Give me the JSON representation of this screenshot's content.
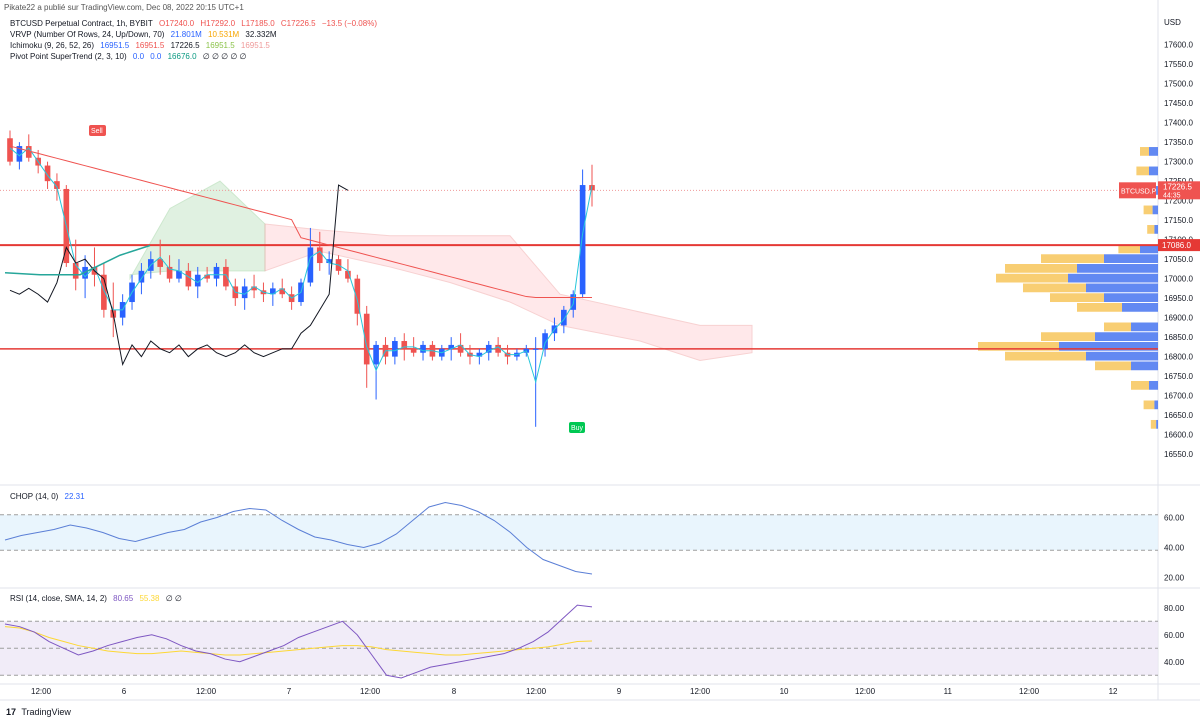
{
  "header": {
    "published": "Pikate22 a publié sur TradingView.com, Dec 08, 2022 20:15 UTC+1"
  },
  "legend": {
    "main": {
      "name": "BTCUSD Perpetual Contract, 1h, BYBIT",
      "o": "O17240.0",
      "h": "H17292.0",
      "l": "L17185.0",
      "c": "C17226.5",
      "chg": "−13.5 (−0.08%)"
    },
    "vrvp": {
      "name": "VRVP (Number Of Rows, 24, Up/Down, 70)",
      "v1": "21.801M",
      "v2": "10.531M",
      "v3": "32.332M"
    },
    "ichimoku": {
      "name": "Ichimoku (9, 26, 52, 26)",
      "v1": "16951.5",
      "v2": "16951.5",
      "v3": "17226.5",
      "v4": "16951.5",
      "v5": "16951.5"
    },
    "pst": {
      "name": "Pivot Point SuperTrend (2, 3, 10)",
      "v1": "0.0",
      "v2": "0.0",
      "v3": "16676.0",
      "v4": "∅ ∅ ∅ ∅ ∅"
    },
    "chop": {
      "name": "CHOP (14, 0)",
      "value": "22.31"
    },
    "rsi": {
      "name": "RSI (14, close, SMA, 14, 2)",
      "value": "80.65",
      "sma": "55.38",
      "rest": "∅ ∅"
    }
  },
  "price_axis": {
    "currency": "USD",
    "ticks": [
      "17600.0",
      "17550.0",
      "17500.0",
      "17450.0",
      "17400.0",
      "17350.0",
      "17300.0",
      "17250.0",
      "17200.0",
      "17150.0",
      "17100.0",
      "17050.0",
      "17000.0",
      "16950.0",
      "16900.0",
      "16850.0",
      "16800.0",
      "16750.0",
      "16700.0",
      "16650.0",
      "16600.0",
      "16550.0"
    ],
    "last_label": "BTCUSD.P",
    "last_price": "17226.5",
    "countdown": "44:35",
    "hline_label": "17086.0"
  },
  "chop_axis": [
    "60.00",
    "40.00",
    "20.00"
  ],
  "rsi_axis": [
    "80.00",
    "60.00",
    "40.00"
  ],
  "time_axis": [
    "12:00",
    "6",
    "12:00",
    "7",
    "12:00",
    "8",
    "12:00",
    "9",
    "12:00",
    "10",
    "12:00",
    "11",
    "12:00",
    "12"
  ],
  "signals": {
    "sell": "Sell",
    "buy": "Buy"
  },
  "footer": {
    "logo": "17",
    "brand": "TradingView"
  },
  "colors": {
    "up": "#2962ff",
    "down": "#ef5350",
    "hline": "#e53935",
    "kijun": "#ef5350",
    "tenkan": "#26c6da",
    "lagging": "#131722",
    "chop": "#5b7fd6",
    "rsi": "#7e57c2",
    "rsi_sma": "#fdd835",
    "vrvp_up": "#4774f0",
    "vrvp_down": "#f7c55a"
  },
  "chart_data": {
    "type": "candlestick",
    "symbol": "BTCUSD Perpetual Contract",
    "interval": "1h",
    "ylim": [
      16550,
      17650
    ],
    "horizontal_lines": [
      17086.0,
      16820.0
    ],
    "candles": [
      [
        17360,
        17380,
        17290,
        17300
      ],
      [
        17300,
        17350,
        17280,
        17340
      ],
      [
        17340,
        17370,
        17300,
        17310
      ],
      [
        17310,
        17330,
        17270,
        17290
      ],
      [
        17290,
        17300,
        17230,
        17250
      ],
      [
        17250,
        17270,
        17200,
        17230
      ],
      [
        17230,
        17240,
        17030,
        17040
      ],
      [
        17040,
        17100,
        16970,
        17000
      ],
      [
        17000,
        17060,
        16950,
        17030
      ],
      [
        17030,
        17080,
        16980,
        17010
      ],
      [
        17010,
        17040,
        16900,
        16920
      ],
      [
        16920,
        16990,
        16850,
        16900
      ],
      [
        16900,
        16960,
        16880,
        16940
      ],
      [
        16940,
        17010,
        16920,
        16990
      ],
      [
        16990,
        17040,
        16960,
        17020
      ],
      [
        17020,
        17070,
        17000,
        17050
      ],
      [
        17050,
        17100,
        17010,
        17030
      ],
      [
        17030,
        17060,
        16990,
        17000
      ],
      [
        17000,
        17050,
        16990,
        17020
      ],
      [
        17020,
        17040,
        16970,
        16980
      ],
      [
        16980,
        17030,
        16950,
        17010
      ],
      [
        17010,
        17030,
        16990,
        17000
      ],
      [
        17000,
        17040,
        16980,
        17030
      ],
      [
        17030,
        17050,
        16970,
        16980
      ],
      [
        16980,
        17000,
        16930,
        16950
      ],
      [
        16950,
        17000,
        16920,
        16980
      ],
      [
        16980,
        17010,
        16950,
        16970
      ],
      [
        16970,
        16990,
        16940,
        16960
      ],
      [
        16960,
        16990,
        16930,
        16975
      ],
      [
        16975,
        17000,
        16950,
        16960
      ],
      [
        16960,
        16980,
        16920,
        16940
      ],
      [
        16940,
        17000,
        16930,
        16990
      ],
      [
        16990,
        17130,
        16980,
        17080
      ],
      [
        17080,
        17120,
        17020,
        17040
      ],
      [
        17040,
        17070,
        17010,
        17050
      ],
      [
        17050,
        17060,
        17010,
        17020
      ],
      [
        17020,
        17050,
        16990,
        17000
      ],
      [
        17000,
        17010,
        16880,
        16910
      ],
      [
        16910,
        16930,
        16720,
        16780
      ],
      [
        16780,
        16840,
        16690,
        16830
      ],
      [
        16830,
        16850,
        16780,
        16800
      ],
      [
        16800,
        16850,
        16780,
        16840
      ],
      [
        16840,
        16860,
        16790,
        16820
      ],
      [
        16820,
        16850,
        16800,
        16810
      ],
      [
        16810,
        16840,
        16790,
        16830
      ],
      [
        16830,
        16840,
        16790,
        16800
      ],
      [
        16800,
        16830,
        16790,
        16820
      ],
      [
        16820,
        16850,
        16790,
        16830
      ],
      [
        16830,
        16860,
        16800,
        16810
      ],
      [
        16810,
        16830,
        16780,
        16800
      ],
      [
        16800,
        16820,
        16780,
        16810
      ],
      [
        16810,
        16840,
        16790,
        16830
      ],
      [
        16830,
        16850,
        16800,
        16810
      ],
      [
        16810,
        16830,
        16780,
        16800
      ],
      [
        16800,
        16820,
        16790,
        16810
      ],
      [
        16810,
        16830,
        16800,
        16820
      ],
      [
        16820,
        16850,
        16620,
        16820
      ],
      [
        16820,
        16870,
        16800,
        16860
      ],
      [
        16860,
        16900,
        16840,
        16880
      ],
      [
        16880,
        16930,
        16860,
        16920
      ],
      [
        16920,
        16970,
        16900,
        16960
      ],
      [
        16960,
        17280,
        16950,
        17240
      ],
      [
        17240,
        17292,
        17185,
        17226.5
      ]
    ],
    "kijun_sen": [
      [
        0,
        17340
      ],
      [
        30,
        17200
      ],
      [
        50,
        17100
      ],
      [
        60,
        17010
      ],
      [
        80,
        16980
      ],
      [
        102,
        16950
      ],
      [
        118,
        16951.5
      ]
    ],
    "chop_series": [
      45,
      48,
      50,
      52,
      55,
      53,
      50,
      46,
      44,
      47,
      50,
      52,
      57,
      60,
      64,
      66,
      65,
      58,
      52,
      47,
      45,
      42,
      40,
      43,
      49,
      58,
      67,
      70,
      68,
      64,
      58,
      50,
      40,
      32,
      28,
      24,
      22.31
    ],
    "rsi_series": [
      68,
      66,
      62,
      55,
      50,
      45,
      48,
      52,
      55,
      58,
      60,
      57,
      52,
      48,
      46,
      42,
      40,
      44,
      48,
      52,
      58,
      62,
      66,
      70,
      60,
      45,
      30,
      28,
      32,
      36,
      38,
      40,
      42,
      44,
      46,
      50,
      55,
      62,
      72,
      82,
      80.65
    ],
    "rsi_sma_series": [
      66,
      65,
      62,
      58,
      55,
      52,
      50,
      48,
      47,
      46,
      46,
      47,
      48,
      47,
      46,
      45,
      45,
      46,
      47,
      48,
      49,
      50,
      51,
      52,
      52,
      51,
      49,
      48,
      47,
      46,
      45,
      45,
      46,
      47,
      48,
      49,
      50,
      51,
      53,
      55,
      55.38
    ],
    "vrvp_rows": [
      [
        17325,
        0.05,
        0.1
      ],
      [
        17275,
        0.05,
        0.12
      ],
      [
        17225,
        0.06,
        0.14
      ],
      [
        17175,
        0.03,
        0.08
      ],
      [
        17125,
        0.02,
        0.06
      ],
      [
        17075,
        0.1,
        0.22
      ],
      [
        17050,
        0.3,
        0.65
      ],
      [
        17025,
        0.45,
        0.85
      ],
      [
        17000,
        0.5,
        0.9
      ],
      [
        16975,
        0.4,
        0.75
      ],
      [
        16950,
        0.3,
        0.6
      ],
      [
        16925,
        0.2,
        0.45
      ],
      [
        16875,
        0.15,
        0.3
      ],
      [
        16850,
        0.35,
        0.65
      ],
      [
        16825,
        0.55,
        1.0
      ],
      [
        16800,
        0.4,
        0.85
      ],
      [
        16775,
        0.15,
        0.35
      ],
      [
        16725,
        0.05,
        0.15
      ],
      [
        16675,
        0.02,
        0.08
      ],
      [
        16625,
        0.01,
        0.04
      ]
    ]
  }
}
